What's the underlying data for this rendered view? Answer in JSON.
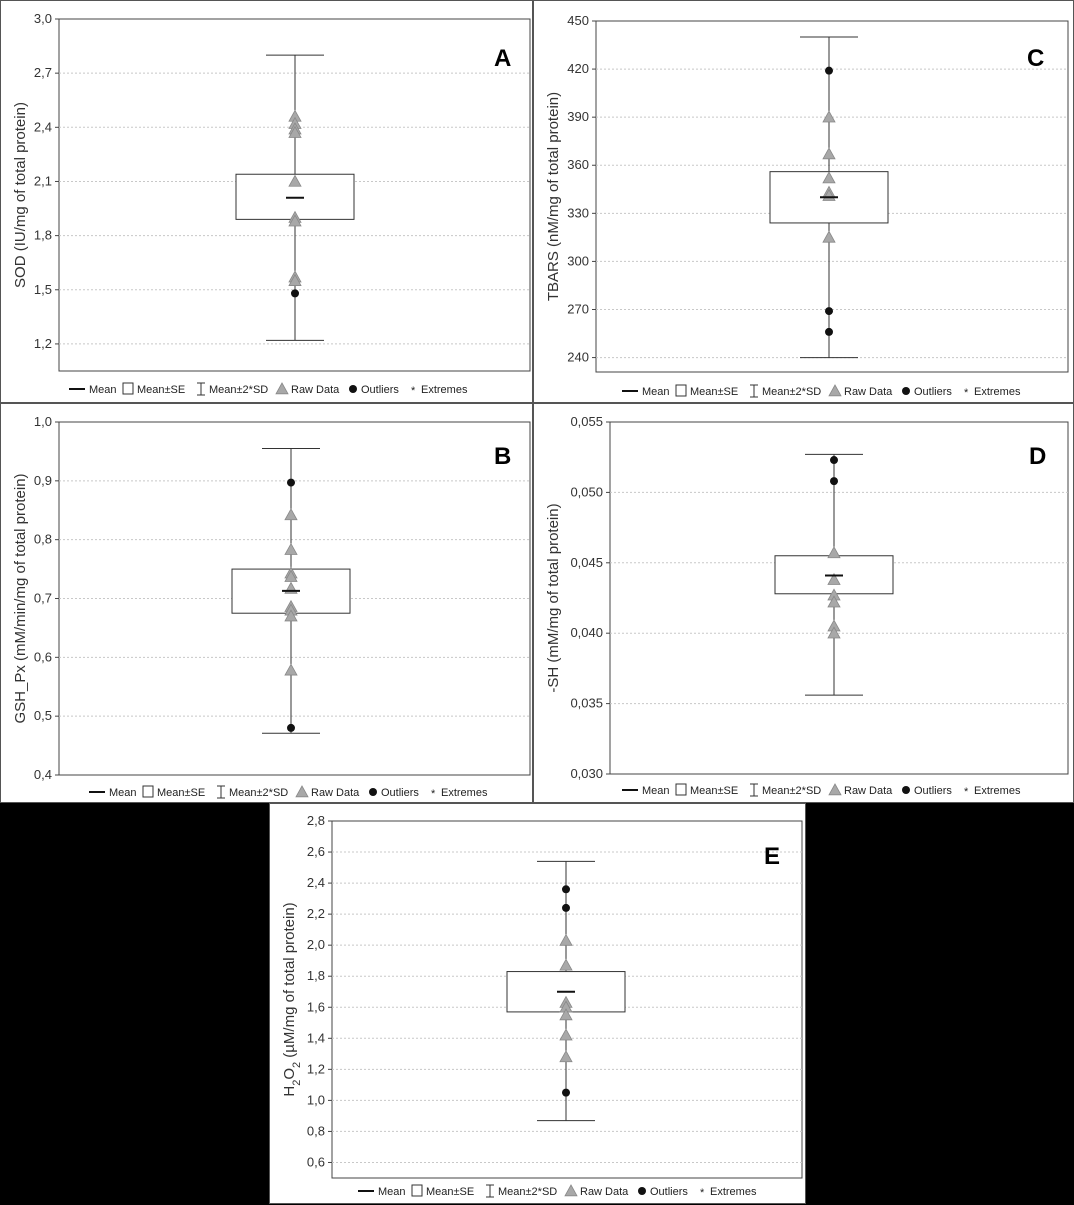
{
  "legend": {
    "mean": "Mean",
    "mean_se": "Mean±SE",
    "mean_2sd": "Mean±2*SD",
    "raw": "Raw Data",
    "outliers": "Outliers",
    "extremes": "Extremes"
  },
  "colors": {
    "raw": "#a8a8a8",
    "outlier": "#111111",
    "box_edge": "#333333"
  },
  "chart_data": [
    {
      "type": "box",
      "letter": "A",
      "ylabel": "SOD (IU/mg of total protein)",
      "ylim": [
        1.05,
        3.0
      ],
      "yticks": [
        1.2,
        1.5,
        1.8,
        2.1,
        2.4,
        2.7,
        3.0
      ],
      "tick_labels": [
        "1,2",
        "1,5",
        "1,8",
        "2,1",
        "2,4",
        "2,7",
        "3,0"
      ],
      "mean": 2.01,
      "se_low": 1.89,
      "se_high": 2.14,
      "sd2_low": 1.22,
      "sd2_high": 2.8,
      "raw": [
        2.46,
        2.42,
        2.39,
        2.37,
        2.1,
        1.9,
        1.88,
        1.57,
        1.55
      ],
      "outliers": [
        1.48
      ]
    },
    {
      "type": "box",
      "letter": "C",
      "ylabel": "TBARS (nM/mg of total protein)",
      "ylim": [
        231,
        450
      ],
      "yticks": [
        240,
        270,
        300,
        330,
        360,
        390,
        420,
        450
      ],
      "tick_labels": [
        "240",
        "270",
        "300",
        "330",
        "360",
        "390",
        "420",
        "450"
      ],
      "mean": 340,
      "se_low": 324,
      "se_high": 356,
      "sd2_low": 240,
      "sd2_high": 440,
      "raw": [
        390,
        367,
        352,
        343,
        341,
        315
      ],
      "outliers": [
        419,
        269,
        256
      ]
    },
    {
      "type": "box",
      "letter": "B",
      "ylabel": "GSH_Px (mM/min/mg of total protein)",
      "ylim": [
        0.4,
        1.0
      ],
      "yticks": [
        0.4,
        0.5,
        0.6,
        0.7,
        0.8,
        0.9,
        1.0
      ],
      "tick_labels": [
        "0,4",
        "0,5",
        "0,6",
        "0,7",
        "0,8",
        "0,9",
        "1,0"
      ],
      "mean": 0.713,
      "se_low": 0.675,
      "se_high": 0.75,
      "sd2_low": 0.471,
      "sd2_high": 0.955,
      "raw": [
        0.842,
        0.783,
        0.743,
        0.737,
        0.717,
        0.686,
        0.68,
        0.67,
        0.578
      ],
      "outliers": [
        0.897,
        0.48
      ]
    },
    {
      "type": "box",
      "letter": "D",
      "ylabel": "-SH (mM/mg of total protein)",
      "ylim": [
        0.03,
        0.055
      ],
      "yticks": [
        0.03,
        0.035,
        0.04,
        0.045,
        0.05,
        0.055
      ],
      "tick_labels": [
        "0,030",
        "0,035",
        "0,040",
        "0,045",
        "0,050",
        "0,055"
      ],
      "mean": 0.0441,
      "se_low": 0.0428,
      "se_high": 0.0455,
      "sd2_low": 0.0356,
      "sd2_high": 0.0527,
      "raw": [
        0.0457,
        0.0438,
        0.0427,
        0.0422,
        0.0405,
        0.04
      ],
      "outliers": [
        0.0523,
        0.0508
      ]
    },
    {
      "type": "box",
      "letter": "E",
      "ylabel_main": "H",
      "ylabel_sub1": "2",
      "ylabel_mid": "O",
      "ylabel_sub2": "2",
      "ylabel_rest": " (µM/mg of total protein)",
      "ylim": [
        0.5,
        2.8
      ],
      "yticks": [
        0.6,
        0.8,
        1.0,
        1.2,
        1.4,
        1.6,
        1.8,
        2.0,
        2.2,
        2.4,
        2.6,
        2.8
      ],
      "tick_labels": [
        "0,6",
        "0,8",
        "1,0",
        "1,2",
        "1,4",
        "1,6",
        "1,8",
        "2,0",
        "2,2",
        "2,4",
        "2,6",
        "2,8"
      ],
      "mean": 1.7,
      "se_low": 1.57,
      "se_high": 1.83,
      "sd2_low": 0.87,
      "sd2_high": 2.54,
      "raw": [
        2.03,
        1.87,
        1.63,
        1.6,
        1.55,
        1.42,
        1.28
      ],
      "outliers": [
        2.36,
        2.24,
        1.05
      ]
    }
  ]
}
